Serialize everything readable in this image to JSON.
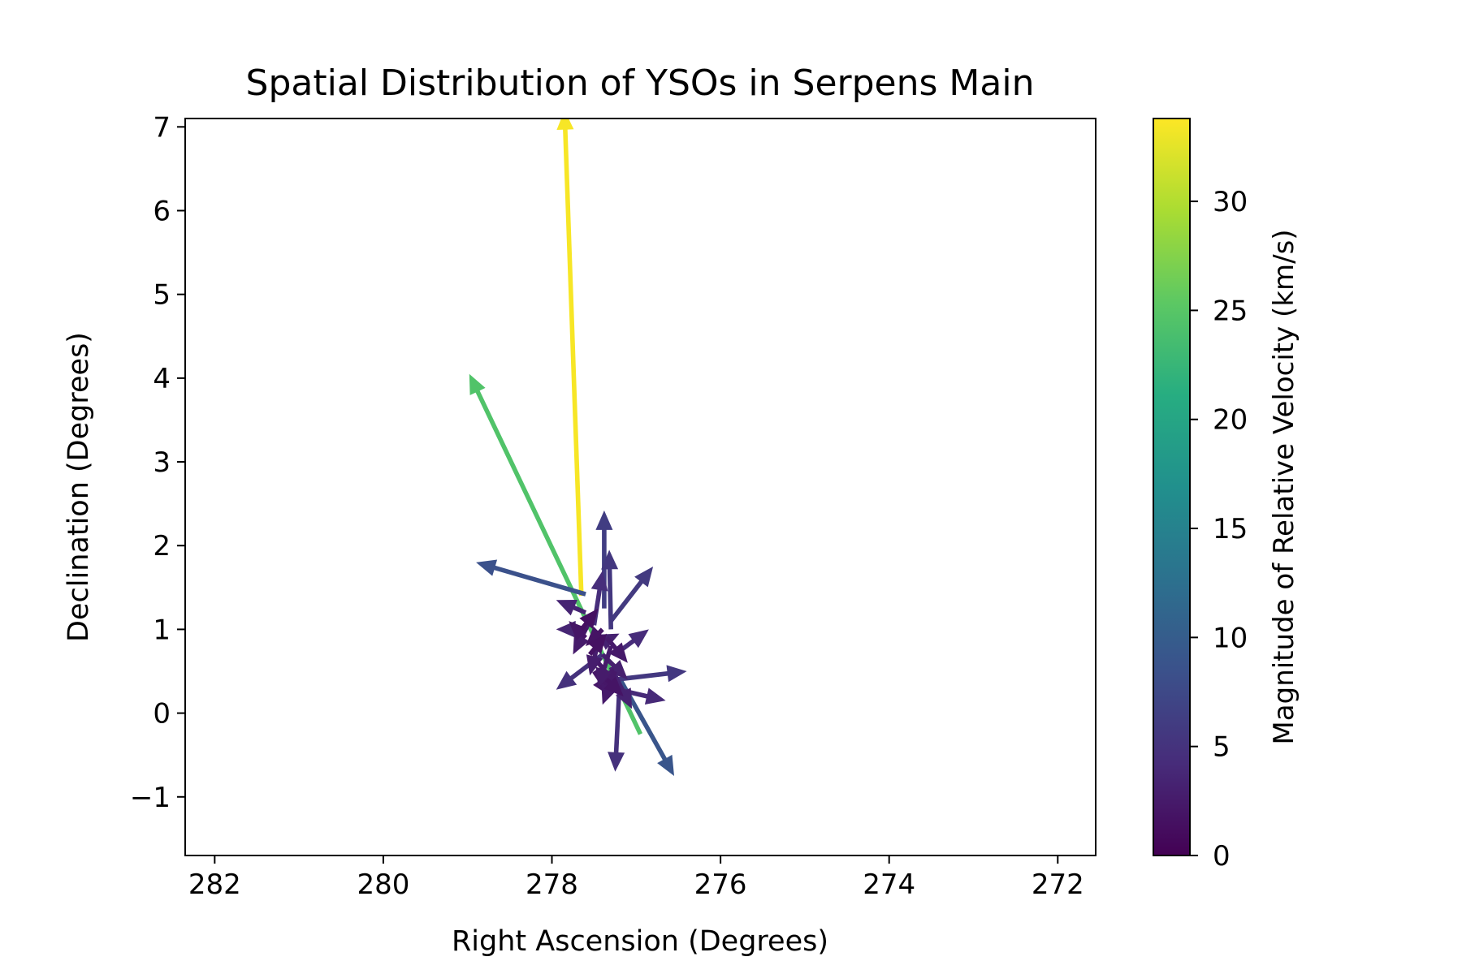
{
  "chart_data": {
    "type": "quiver",
    "title": "Spatial Distribution of YSOs in Serpens Main",
    "xlabel": "Right Ascension (Degrees)",
    "ylabel": "Declination (Degrees)",
    "xlim": [
      282.35,
      271.55
    ],
    "ylim": [
      -1.7,
      7.1
    ],
    "x_inverted": true,
    "xticks": [
      282,
      280,
      278,
      276,
      274,
      272
    ],
    "xtick_labels": [
      "282",
      "280",
      "278",
      "276",
      "274",
      "272"
    ],
    "yticks": [
      -1,
      0,
      1,
      2,
      3,
      4,
      5,
      6,
      7
    ],
    "ytick_labels": [
      "−1",
      "0",
      "1",
      "2",
      "3",
      "4",
      "5",
      "6",
      "7"
    ],
    "colorbar": {
      "label": "Magnitude of Relative Velocity (km/s)",
      "range": [
        0,
        33.8
      ],
      "ticks": [
        0,
        5,
        10,
        15,
        20,
        25,
        30
      ],
      "tick_labels": [
        "0",
        "5",
        "10",
        "15",
        "20",
        "25",
        "30"
      ],
      "colormap": "viridis"
    },
    "grid": false,
    "vectors": [
      {
        "x": 277.65,
        "y": 1.4,
        "x2": 277.85,
        "y2": 7.2,
        "v": 33.5
      },
      {
        "x": 276.95,
        "y": -0.25,
        "x2": 278.98,
        "y2": 4.05,
        "v": 24.5
      },
      {
        "x": 277.6,
        "y": 1.42,
        "x2": 278.9,
        "y2": 1.8,
        "v": 8.5
      },
      {
        "x": 277.2,
        "y": 0.42,
        "x2": 276.55,
        "y2": -0.75,
        "v": 9.0
      },
      {
        "x": 277.38,
        "y": 1.25,
        "x2": 277.38,
        "y2": 2.42,
        "v": 6.2
      },
      {
        "x": 277.3,
        "y": 1.1,
        "x2": 276.8,
        "y2": 1.75,
        "v": 5.8
      },
      {
        "x": 277.3,
        "y": 1.0,
        "x2": 277.32,
        "y2": 1.95,
        "v": 5.5
      },
      {
        "x": 277.25,
        "y": 0.4,
        "x2": 276.4,
        "y2": 0.5,
        "v": 5.6
      },
      {
        "x": 277.4,
        "y": 0.7,
        "x2": 277.95,
        "y2": 0.28,
        "v": 4.8
      },
      {
        "x": 277.2,
        "y": 0.3,
        "x2": 277.25,
        "y2": -0.7,
        "v": 4.8
      },
      {
        "x": 277.25,
        "y": 0.7,
        "x2": 276.85,
        "y2": 1.0,
        "v": 4.2
      },
      {
        "x": 277.3,
        "y": 0.3,
        "x2": 276.65,
        "y2": 0.15,
        "v": 4.0
      },
      {
        "x": 277.5,
        "y": 1.05,
        "x2": 277.4,
        "y2": 1.7,
        "v": 4.4
      },
      {
        "x": 277.6,
        "y": 1.0,
        "x2": 277.95,
        "y2": 1.0,
        "v": 3.6
      },
      {
        "x": 277.6,
        "y": 1.2,
        "x2": 277.95,
        "y2": 1.35,
        "v": 3.4
      },
      {
        "x": 277.5,
        "y": 0.8,
        "x2": 277.2,
        "y2": 0.95,
        "v": 3.2
      },
      {
        "x": 277.4,
        "y": 0.7,
        "x2": 277.1,
        "y2": 0.4,
        "v": 3.0
      },
      {
        "x": 277.3,
        "y": 0.55,
        "x2": 277.05,
        "y2": 0.05,
        "v": 3.2
      },
      {
        "x": 277.45,
        "y": 0.85,
        "x2": 277.55,
        "y2": 0.45,
        "v": 2.8
      },
      {
        "x": 277.55,
        "y": 1.1,
        "x2": 277.75,
        "y2": 0.7,
        "v": 2.6
      },
      {
        "x": 277.45,
        "y": 0.6,
        "x2": 277.2,
        "y2": 0.3,
        "v": 2.4
      },
      {
        "x": 277.35,
        "y": 0.9,
        "x2": 277.1,
        "y2": 0.6,
        "v": 2.5
      },
      {
        "x": 277.5,
        "y": 0.5,
        "x2": 277.3,
        "y2": 0.2,
        "v": 2.2
      },
      {
        "x": 277.6,
        "y": 0.9,
        "x2": 277.8,
        "y2": 1.1,
        "v": 2.0
      },
      {
        "x": 277.4,
        "y": 1.0,
        "x2": 277.6,
        "y2": 0.8,
        "v": 1.8
      },
      {
        "x": 277.3,
        "y": 0.8,
        "x2": 277.45,
        "y2": 0.3,
        "v": 2.6
      },
      {
        "x": 277.55,
        "y": 0.7,
        "x2": 277.35,
        "y2": 0.95,
        "v": 1.6
      },
      {
        "x": 277.25,
        "y": 0.5,
        "x2": 277.4,
        "y2": 0.1,
        "v": 2.4
      },
      {
        "x": 277.65,
        "y": 1.0,
        "x2": 277.45,
        "y2": 1.25,
        "v": 1.5
      },
      {
        "x": 277.35,
        "y": 0.4,
        "x2": 277.15,
        "y2": 0.2,
        "v": 1.9
      }
    ]
  }
}
